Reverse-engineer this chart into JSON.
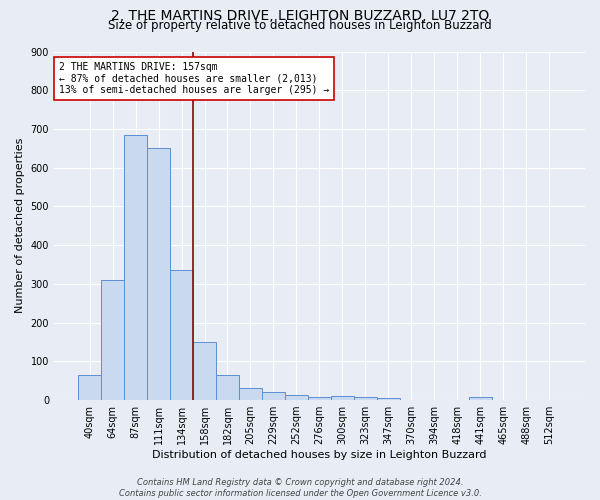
{
  "title": "2, THE MARTINS DRIVE, LEIGHTON BUZZARD, LU7 2TQ",
  "subtitle": "Size of property relative to detached houses in Leighton Buzzard",
  "xlabel": "Distribution of detached houses by size in Leighton Buzzard",
  "ylabel": "Number of detached properties",
  "footer_line1": "Contains HM Land Registry data © Crown copyright and database right 2024.",
  "footer_line2": "Contains public sector information licensed under the Open Government Licence v3.0.",
  "categories": [
    "40sqm",
    "64sqm",
    "87sqm",
    "111sqm",
    "134sqm",
    "158sqm",
    "182sqm",
    "205sqm",
    "229sqm",
    "252sqm",
    "276sqm",
    "300sqm",
    "323sqm",
    "347sqm",
    "370sqm",
    "394sqm",
    "418sqm",
    "441sqm",
    "465sqm",
    "488sqm",
    "512sqm"
  ],
  "values": [
    65,
    310,
    685,
    650,
    335,
    150,
    65,
    30,
    22,
    12,
    8,
    10,
    8,
    5,
    0,
    0,
    0,
    8,
    0,
    0,
    0
  ],
  "bar_color": "#c8d9f0",
  "bar_edge_color": "#5b8fd4",
  "bar_edge_width": 0.7,
  "vline_color": "#8b1a1a",
  "annotation_line1": "2 THE MARTINS DRIVE: 157sqm",
  "annotation_line2": "← 87% of detached houses are smaller (2,013)",
  "annotation_line3": "13% of semi-detached houses are larger (295) →",
  "annotation_box_color": "white",
  "annotation_box_edge_color": "#cc0000",
  "ylim": [
    0,
    900
  ],
  "yticks": [
    0,
    100,
    200,
    300,
    400,
    500,
    600,
    700,
    800,
    900
  ],
  "bg_color": "#e8edf5",
  "plot_bg_color": "#e8edf5",
  "grid_color": "white",
  "title_fontsize": 10,
  "subtitle_fontsize": 8.5,
  "axis_label_fontsize": 8,
  "tick_fontsize": 7,
  "annotation_fontsize": 7,
  "footer_fontsize": 6
}
